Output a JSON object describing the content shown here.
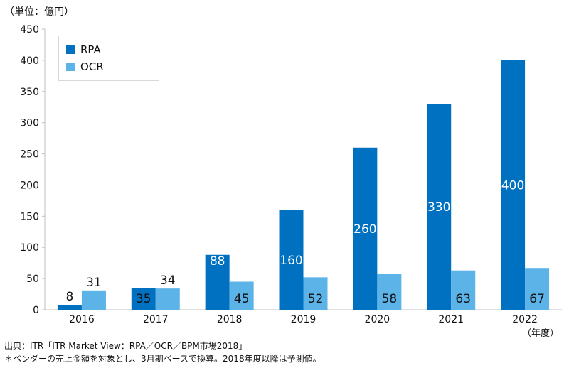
{
  "unit_label": "（単位：億円）",
  "x_unit_label": "（年度）",
  "source": "出典：ITR「ITR Market View：RPA／OCR／BPM市場2018」",
  "note": "＊ベンダーの売上金額を対象とし、3月期ベースで換算。2018年度以降は予測値。",
  "chart_data": {
    "type": "bar",
    "categories": [
      "2016",
      "2017",
      "2018",
      "2019",
      "2020",
      "2021",
      "2022"
    ],
    "series": [
      {
        "name": "RPA",
        "values": [
          8,
          35,
          88,
          160,
          260,
          330,
          400
        ],
        "color": "#0070c0"
      },
      {
        "name": "OCR",
        "values": [
          31,
          34,
          45,
          52,
          58,
          63,
          67
        ],
        "color": "#5bb3e8"
      }
    ],
    "ylim": [
      0,
      450
    ],
    "yticks": [
      0,
      50,
      100,
      150,
      200,
      250,
      300,
      350,
      400,
      450
    ],
    "grid": false,
    "legend": "top-left"
  }
}
